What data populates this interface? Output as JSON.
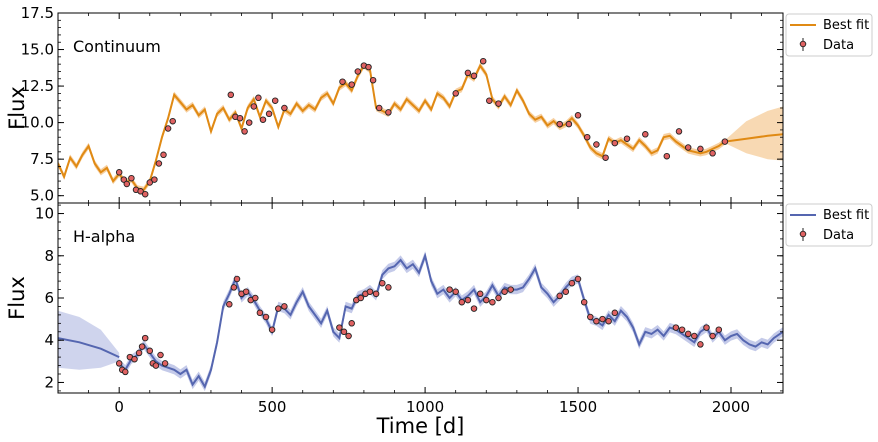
{
  "chart_data": [
    {
      "type": "line",
      "panel_label": "Continuum",
      "ylabel": "Flux",
      "xlim": [
        -200,
        2170
      ],
      "ylim": [
        4.5,
        17.5
      ],
      "yticks": [
        5.0,
        7.5,
        10.0,
        12.5,
        15.0,
        17.5
      ],
      "ytick_labels": [
        "5.0",
        "7.5",
        "10.0",
        "12.5",
        "15.0",
        "17.5"
      ],
      "legend": [
        "Best fit",
        "Data"
      ],
      "legend_placement": "outside-top-right",
      "colors": {
        "fit": "#e08a14",
        "band": "#f5c48a",
        "data": "#e06262"
      },
      "best_fit": {
        "x": [
          -200,
          -180,
          -160,
          -140,
          -120,
          -100,
          -80,
          -60,
          -40,
          -20,
          0,
          20,
          40,
          60,
          80,
          100,
          120,
          140,
          160,
          180,
          200,
          220,
          240,
          260,
          280,
          300,
          320,
          340,
          360,
          380,
          400,
          420,
          440,
          460,
          480,
          500,
          520,
          540,
          560,
          580,
          600,
          620,
          640,
          660,
          680,
          700,
          720,
          740,
          760,
          780,
          800,
          820,
          840,
          860,
          880,
          900,
          920,
          940,
          960,
          980,
          1000,
          1020,
          1040,
          1060,
          1080,
          1100,
          1120,
          1140,
          1160,
          1180,
          1200,
          1220,
          1240,
          1260,
          1280,
          1300,
          1320,
          1340,
          1360,
          1380,
          1400,
          1420,
          1440,
          1460,
          1480,
          1500,
          1520,
          1540,
          1560,
          1580,
          1600,
          1620,
          1640,
          1660,
          1680,
          1700,
          1720,
          1740,
          1760,
          1780,
          1800,
          1820,
          1840,
          1860,
          1880,
          1900,
          1920,
          1940,
          1960,
          1980
        ],
        "y": [
          7.2,
          6.3,
          7.6,
          7.0,
          7.8,
          8.4,
          7.2,
          6.6,
          6.9,
          6.0,
          6.5,
          5.9,
          6.1,
          5.5,
          5.4,
          6.0,
          7.4,
          9.0,
          10.3,
          11.9,
          11.4,
          10.9,
          11.2,
          10.5,
          10.9,
          9.4,
          10.6,
          11.0,
          10.2,
          10.7,
          9.6,
          11.0,
          11.6,
          10.4,
          11.5,
          11.0,
          9.7,
          10.9,
          10.6,
          11.3,
          10.8,
          11.2,
          10.9,
          11.7,
          12.0,
          11.3,
          12.4,
          12.7,
          12.2,
          13.2,
          13.9,
          13.6,
          11.0,
          10.8,
          10.6,
          11.3,
          10.9,
          11.6,
          11.2,
          10.8,
          11.5,
          10.9,
          12.0,
          11.7,
          11.1,
          12.1,
          12.3,
          13.3,
          13.0,
          13.9,
          13.3,
          11.6,
          11.1,
          11.8,
          11.2,
          12.2,
          11.5,
          10.6,
          10.2,
          10.4,
          9.8,
          10.1,
          9.7,
          9.9,
          10.3,
          9.8,
          9.1,
          8.3,
          7.9,
          7.7,
          8.9,
          8.6,
          8.8,
          8.5,
          8.2,
          8.8,
          8.4,
          7.9,
          8.1,
          9.0,
          9.1,
          8.7,
          8.4,
          8.1,
          8.0,
          7.9,
          8.0,
          8.2,
          8.4,
          8.7
        ]
      },
      "extrapolation": {
        "x": [
          1980,
          2050,
          2120,
          2170
        ],
        "y": [
          8.7,
          8.9,
          9.1,
          9.2
        ],
        "lower": [
          8.6,
          7.9,
          7.5,
          7.4
        ],
        "upper": [
          8.8,
          10.1,
          10.8,
          11.1
        ]
      },
      "data_points": {
        "x": [
          0,
          15,
          25,
          40,
          55,
          70,
          85,
          100,
          115,
          130,
          145,
          160,
          175,
          365,
          380,
          395,
          410,
          425,
          440,
          455,
          470,
          490,
          510,
          540,
          730,
          760,
          780,
          800,
          815,
          830,
          850,
          880,
          1100,
          1140,
          1160,
          1190,
          1210,
          1240,
          1440,
          1470,
          1500,
          1530,
          1560,
          1590,
          1620,
          1660,
          1720,
          1790,
          1830,
          1860,
          1900,
          1940,
          1980
        ],
        "y": [
          6.6,
          6.1,
          5.8,
          6.2,
          5.4,
          5.3,
          5.1,
          5.9,
          6.1,
          7.2,
          7.8,
          9.6,
          10.1,
          11.9,
          10.4,
          10.3,
          9.4,
          10.0,
          11.1,
          11.7,
          10.2,
          10.6,
          11.5,
          11.0,
          12.8,
          12.6,
          13.5,
          13.9,
          13.8,
          12.9,
          11.0,
          10.7,
          12.0,
          13.4,
          13.2,
          14.2,
          11.5,
          11.3,
          9.9,
          9.9,
          10.5,
          9.0,
          8.5,
          7.6,
          8.6,
          8.9,
          9.2,
          7.7,
          9.4,
          8.3,
          8.2,
          7.9,
          8.7
        ]
      }
    },
    {
      "type": "line",
      "panel_label": "H-alpha",
      "ylabel": "Flux",
      "xlabel": "Time [d]",
      "xlim": [
        -200,
        2170
      ],
      "ylim": [
        1.5,
        10.5
      ],
      "xticks": [
        0,
        500,
        1000,
        1500,
        2000
      ],
      "xtick_labels": [
        "0",
        "500",
        "1000",
        "1500",
        "2000"
      ],
      "yticks": [
        2,
        4,
        6,
        8,
        10
      ],
      "ytick_labels": [
        "2",
        "4",
        "6",
        "8",
        "10"
      ],
      "legend": [
        "Best fit",
        "Data"
      ],
      "legend_placement": "outside-top-right",
      "colors": {
        "fit": "#5566b0",
        "band": "#b5bde3",
        "data": "#e06262"
      },
      "best_fit": {
        "x": [
          0,
          20,
          40,
          60,
          80,
          100,
          120,
          140,
          160,
          180,
          200,
          220,
          240,
          260,
          280,
          300,
          320,
          340,
          360,
          380,
          400,
          420,
          440,
          460,
          480,
          500,
          520,
          540,
          560,
          580,
          600,
          620,
          640,
          660,
          680,
          700,
          720,
          740,
          760,
          780,
          800,
          820,
          840,
          860,
          880,
          900,
          920,
          940,
          960,
          980,
          1000,
          1020,
          1040,
          1060,
          1080,
          1100,
          1120,
          1140,
          1160,
          1180,
          1200,
          1220,
          1240,
          1260,
          1280,
          1300,
          1320,
          1340,
          1360,
          1380,
          1400,
          1420,
          1440,
          1460,
          1480,
          1500,
          1520,
          1540,
          1560,
          1580,
          1600,
          1620,
          1640,
          1660,
          1680,
          1700,
          1720,
          1740,
          1760,
          1780,
          1800,
          1820,
          1840,
          1860,
          1880,
          1900,
          1920,
          1940,
          1960,
          1980,
          2000,
          2020,
          2040,
          2060,
          2080,
          2100,
          2120,
          2140,
          2170
        ],
        "y": [
          2.9,
          2.6,
          3.1,
          3.3,
          3.8,
          3.4,
          3.0,
          2.8,
          2.7,
          2.6,
          2.4,
          2.6,
          1.9,
          2.3,
          1.8,
          2.6,
          3.9,
          5.6,
          6.2,
          6.9,
          6.0,
          6.3,
          5.9,
          5.4,
          5.0,
          4.4,
          5.6,
          5.5,
          5.2,
          5.8,
          6.3,
          5.6,
          5.2,
          4.8,
          5.4,
          4.4,
          4.1,
          5.6,
          5.5,
          6.1,
          6.2,
          6.4,
          6.1,
          7.1,
          7.4,
          7.5,
          7.8,
          7.4,
          7.6,
          7.2,
          8.0,
          6.8,
          6.2,
          6.4,
          6.0,
          6.3,
          5.9,
          6.1,
          6.4,
          5.8,
          6.1,
          6.6,
          6.1,
          6.5,
          6.4,
          6.4,
          6.5,
          6.9,
          7.4,
          6.5,
          6.2,
          5.8,
          6.1,
          6.5,
          6.8,
          6.9,
          5.9,
          5.0,
          4.9,
          4.7,
          5.2,
          4.9,
          5.4,
          5.1,
          4.6,
          3.8,
          4.4,
          4.3,
          4.5,
          4.2,
          4.6,
          4.5,
          4.3,
          4.1,
          3.9,
          4.4,
          4.6,
          4.1,
          4.4,
          4.0,
          4.2,
          4.3,
          4.0,
          3.8,
          3.7,
          3.9,
          3.8,
          4.1,
          4.4
        ]
      },
      "extrapolation": {
        "x": [
          -200,
          -130,
          -60,
          0
        ],
        "y": [
          4.1,
          3.9,
          3.6,
          3.2
        ],
        "lower": [
          2.7,
          2.6,
          2.7,
          3.0
        ],
        "upper": [
          5.4,
          5.1,
          4.5,
          3.4
        ]
      },
      "data_points": {
        "x": [
          0,
          10,
          20,
          35,
          50,
          65,
          75,
          85,
          100,
          110,
          120,
          135,
          150,
          360,
          375,
          385,
          400,
          415,
          430,
          445,
          460,
          480,
          500,
          520,
          540,
          720,
          735,
          750,
          760,
          775,
          790,
          805,
          820,
          840,
          860,
          880,
          1080,
          1100,
          1120,
          1140,
          1160,
          1180,
          1200,
          1220,
          1240,
          1260,
          1280,
          1440,
          1460,
          1480,
          1500,
          1520,
          1540,
          1560,
          1580,
          1600,
          1620,
          1820,
          1840,
          1860,
          1880,
          1900,
          1920,
          1940,
          1960
        ],
        "y": [
          2.9,
          2.6,
          2.5,
          3.2,
          3.1,
          3.4,
          3.7,
          4.1,
          3.5,
          2.9,
          2.8,
          3.3,
          2.9,
          5.7,
          6.5,
          6.9,
          6.2,
          6.3,
          5.9,
          6.0,
          5.3,
          5.1,
          4.5,
          5.5,
          5.6,
          4.6,
          4.4,
          4.2,
          4.8,
          5.9,
          6.0,
          6.2,
          6.3,
          6.2,
          6.7,
          6.5,
          6.4,
          6.3,
          5.8,
          5.9,
          5.5,
          6.2,
          5.9,
          5.8,
          6.0,
          6.3,
          6.4,
          6.1,
          6.3,
          6.7,
          6.9,
          5.8,
          5.1,
          4.9,
          5.0,
          4.9,
          5.3,
          4.6,
          4.5,
          4.3,
          4.2,
          3.8,
          4.6,
          4.2,
          4.5
        ]
      }
    }
  ]
}
